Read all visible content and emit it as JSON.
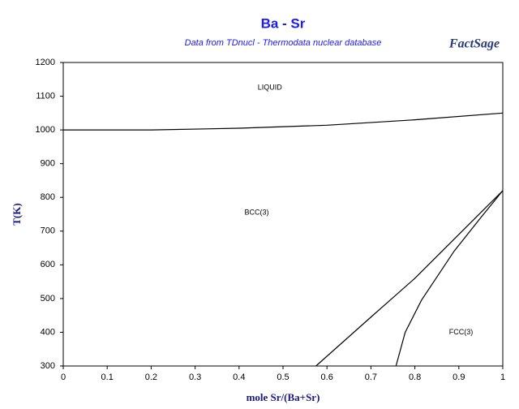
{
  "chart_data": {
    "type": "line",
    "title": "Ba - Sr",
    "subtitle": "Data from TDnucl - Thermodata nuclear database",
    "logo": "FactSage",
    "xlabel": "mole Sr/(Ba+Sr)",
    "ylabel": "T(K)",
    "xlim": [
      0,
      1
    ],
    "ylim": [
      300,
      1200
    ],
    "xticks": [
      0,
      0.1,
      0.2,
      0.3,
      0.4,
      0.5,
      0.6,
      0.7,
      0.8,
      0.9,
      1
    ],
    "yticks": [
      300,
      400,
      500,
      600,
      700,
      800,
      900,
      1000,
      1100,
      1200
    ],
    "series": [
      {
        "color": "#000000",
        "x": [
          0,
          0.2,
          0.4,
          0.6,
          0.8,
          1
        ],
        "values": [
          1000,
          1000,
          1005,
          1014,
          1030,
          1050
        ]
      },
      {
        "color": "#000000",
        "x": [
          0.575,
          0.7,
          0.8,
          0.9,
          1
        ],
        "values": [
          300,
          445,
          560,
          690,
          820
        ]
      },
      {
        "color": "#000000",
        "x": [
          0.757,
          0.778,
          0.815,
          0.889,
          0.95,
          1
        ],
        "values": [
          300,
          400,
          495,
          640,
          740,
          820
        ]
      }
    ],
    "annotations": [
      {
        "text": "LIQUID",
        "x": 0.47,
        "y": 1125
      },
      {
        "text": "BCC(3)",
        "x": 0.44,
        "y": 755
      },
      {
        "text": "FCC(3)",
        "x": 0.905,
        "y": 400
      }
    ]
  }
}
